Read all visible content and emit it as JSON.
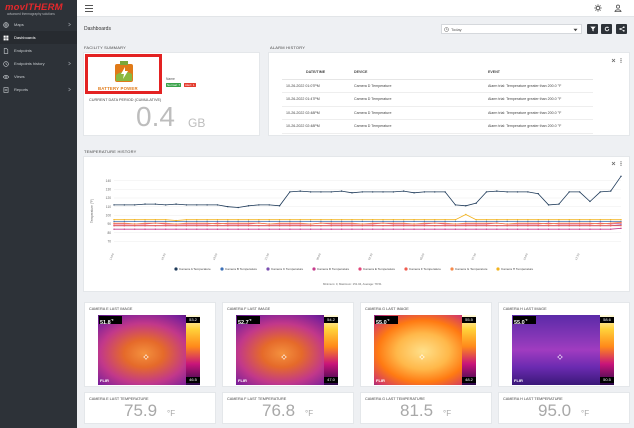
{
  "brand": {
    "logo": "movITHERM",
    "tagline": "advanced thermography solutions"
  },
  "sidebar": {
    "items": [
      {
        "label": "Maps",
        "icon": "globe-icon",
        "has_children": true
      },
      {
        "label": "Dashboards",
        "icon": "dashboard-icon",
        "active": true
      },
      {
        "label": "Endpoints",
        "icon": "file-icon"
      },
      {
        "label": "Endpoints history",
        "icon": "history-icon",
        "has_children": true
      },
      {
        "label": "Views",
        "icon": "eye-icon"
      },
      {
        "label": "Reports",
        "icon": "report-icon",
        "has_children": true
      }
    ]
  },
  "topbar": {
    "icons": [
      "menu-icon",
      "gear-icon",
      "user-icon"
    ]
  },
  "header": {
    "title": "Dashboards",
    "date_range": "Today",
    "buttons": [
      "filter-icon",
      "refresh-icon",
      "share-icon"
    ]
  },
  "facility": {
    "section_title": "FACILITY SUMMARY",
    "logo_text": "BATTERY POWER",
    "name": "Name",
    "badges": [
      {
        "label": "Normal: 7",
        "color": "#3aa34a"
      },
      {
        "label": "Alert: 1",
        "color": "#e33b2e"
      }
    ]
  },
  "data_period": {
    "title": "CURRENT DATA PERIOD (CUMULATIVE)",
    "value": "0.4",
    "unit": "GB"
  },
  "alarm_history": {
    "title": "ALARM HISTORY",
    "columns": [
      "DATE/TIME",
      "DEVICE",
      "EVENT"
    ],
    "rows": [
      [
        "10-26-2022 01:07PM",
        "Camera D Temperature",
        "Alarm trial: Temperature greater than 200.0 °F"
      ],
      [
        "10-26-2022 01:47PM",
        "Camera D Temperature",
        "Alarm trial: Temperature greater than 200.0 °F"
      ],
      [
        "10-26-2022 02:48PM",
        "Camera D Temperature",
        "Alarm trial: Temperature greater than 200.0 °F"
      ],
      [
        "10-26-2022 02:48PM",
        "Camera D Temperature",
        "Alarm trial: Temperature greater than 200.0 °F"
      ]
    ]
  },
  "temp_history": {
    "title": "TEMPERATURE HISTORY",
    "minmax": "Minimum: 0, Maximum: 151.04, Average: 78.51"
  },
  "chart_data": {
    "type": "line",
    "ylabel": "Temperature (°F)",
    "ylim": [
      60,
      150
    ],
    "yticks": [
      140,
      130,
      120,
      110,
      100,
      90,
      80,
      70
    ],
    "grid": true,
    "legend_position": "bottom",
    "x": [
      "14:00",
      "14:30",
      "15:00",
      "15:30",
      "16:00",
      "16:30",
      "17:00",
      "17:30",
      "18:00",
      "18:30",
      "19:00",
      "19:30",
      "20:00",
      "20:30",
      "21:00",
      "21:30",
      "22:00",
      "22:30",
      "23:00",
      "23:30",
      "00:00",
      "00:30",
      "01:00",
      "01:30",
      "02:00",
      "02:30",
      "03:00",
      "03:30",
      "04:00",
      "04:30",
      "05:00",
      "05:30",
      "06:00",
      "06:30",
      "07:00",
      "07:30",
      "08:00",
      "08:30",
      "09:00",
      "09:30",
      "10:00",
      "10:30",
      "11:00",
      "11:30",
      "12:00",
      "12:30",
      "13:00",
      "13:30",
      "14:00",
      "14:30"
    ],
    "series": [
      {
        "name": "Camera A Temperature",
        "color": "#1f3b5a",
        "values": [
          112,
          112,
          112,
          113,
          113,
          112,
          113,
          112,
          112,
          112,
          112,
          110,
          109,
          111,
          112,
          112,
          111,
          127,
          128,
          127,
          127,
          127,
          128,
          126,
          127,
          127,
          127,
          127,
          128,
          126,
          127,
          127,
          127,
          112,
          111,
          114,
          127,
          128,
          127,
          127,
          127,
          125,
          112,
          113,
          127,
          127,
          116,
          127,
          128,
          145
        ]
      },
      {
        "name": "Camera B Temperature",
        "color": "#3b6fb6",
        "values": [
          93,
          93,
          93,
          93,
          93,
          93,
          93,
          93,
          93,
          93,
          93,
          93,
          93,
          93,
          93,
          93,
          93,
          93,
          93,
          93,
          93,
          93,
          93,
          93,
          93,
          93,
          93,
          93,
          93,
          93,
          93,
          93,
          93,
          93,
          93,
          93,
          93,
          93,
          93,
          93,
          93,
          93,
          93,
          93,
          93,
          93,
          93,
          93,
          93,
          93
        ]
      },
      {
        "name": "Camera C Temperature",
        "color": "#7b4fb0",
        "values": [
          88,
          88,
          88,
          88,
          88,
          88,
          88,
          88,
          88,
          88,
          88,
          88,
          88,
          88,
          88,
          88,
          88,
          88,
          88,
          88,
          88,
          88,
          88,
          88,
          88,
          88,
          88,
          88,
          88,
          88,
          88,
          88,
          88,
          88,
          88,
          88,
          88,
          88,
          88,
          88,
          88,
          88,
          88,
          88,
          88,
          88,
          88,
          88,
          88,
          89
        ]
      },
      {
        "name": "Camera D Temperature",
        "color": "#c63c8c",
        "values": [
          84,
          84,
          84,
          84,
          84,
          84,
          84,
          84,
          84,
          84,
          84,
          84,
          84,
          84,
          84,
          84,
          84,
          84,
          84,
          84,
          84,
          84,
          84,
          84,
          84,
          84,
          84,
          84,
          84,
          84,
          84,
          84,
          84,
          84,
          84,
          84,
          84,
          84,
          84,
          84,
          84,
          84,
          84,
          84,
          84,
          84,
          84,
          84,
          84,
          85
        ]
      },
      {
        "name": "Camera E Temperature",
        "color": "#e2467a",
        "values": [
          90,
          90,
          90,
          90,
          91,
          90,
          90,
          90,
          90,
          90,
          91,
          90,
          90,
          90,
          91,
          90,
          90,
          90,
          90,
          90,
          91,
          90,
          90,
          90,
          90,
          90,
          91,
          90,
          90,
          90,
          90,
          91,
          90,
          90,
          90,
          90,
          90,
          91,
          90,
          90,
          90,
          90,
          91,
          90,
          90,
          90,
          90,
          91,
          90,
          91
        ]
      },
      {
        "name": "Camera F Temperature",
        "color": "#f05c4f",
        "values": [
          88,
          88,
          88,
          88,
          88,
          88,
          88,
          88,
          88,
          88,
          88,
          88,
          88,
          88,
          88,
          88,
          88,
          88,
          88,
          88,
          88,
          88,
          88,
          88,
          88,
          88,
          88,
          88,
          88,
          88,
          88,
          88,
          88,
          88,
          88,
          88,
          88,
          88,
          88,
          88,
          88,
          88,
          88,
          88,
          88,
          88,
          88,
          88,
          88,
          88
        ]
      },
      {
        "name": "Camera G Temperature",
        "color": "#f5894a",
        "values": [
          91,
          91,
          90,
          91,
          91,
          91,
          90,
          91,
          91,
          91,
          90,
          91,
          91,
          91,
          91,
          90,
          91,
          91,
          91,
          90,
          91,
          91,
          91,
          91,
          90,
          91,
          91,
          91,
          91,
          90,
          91,
          91,
          91,
          90,
          91,
          91,
          91,
          91,
          90,
          91,
          91,
          91,
          90,
          91,
          91,
          91,
          91,
          90,
          91,
          92
        ]
      },
      {
        "name": "Camera H Temperature",
        "color": "#f2b31f",
        "values": [
          95,
          95,
          95,
          95,
          95,
          95,
          94,
          95,
          95,
          95,
          95,
          95,
          95,
          95,
          95,
          95,
          95,
          95,
          95,
          95,
          95,
          95,
          95,
          95,
          95,
          95,
          95,
          95,
          95,
          95,
          95,
          95,
          95,
          95,
          101,
          95,
          95,
          95,
          95,
          95,
          95,
          95,
          95,
          95,
          95,
          95,
          95,
          95,
          95,
          95
        ]
      }
    ]
  },
  "cameras": [
    {
      "last_image_title": "CAMERA E LAST IMAGE",
      "top_temp": "51.8",
      "scale_hi": "53.2",
      "scale_lo": "46.5",
      "unit": "°F",
      "last_temp_title": "CAMERA E LAST TEMPERATURE",
      "last_temp": "75.9",
      "last_unit": "°F",
      "palette": "iron"
    },
    {
      "last_image_title": "CAMERA F LAST IMAGE",
      "top_temp": "52.7",
      "scale_hi": "54.2",
      "scale_lo": "47.0",
      "unit": "°F",
      "last_temp_title": "CAMERA F LAST TEMPERATURE",
      "last_temp": "76.8",
      "last_unit": "°F",
      "palette": "iron"
    },
    {
      "last_image_title": "CAMERA G LAST IMAGE",
      "top_temp": "55.0",
      "scale_hi": "55.5",
      "scale_lo": "48.2",
      "unit": "°F",
      "last_temp_title": "CAMERA G LAST TEMPERATURE",
      "last_temp": "81.5",
      "last_unit": "°F",
      "palette": "hot"
    },
    {
      "last_image_title": "CAMERA H LAST IMAGE",
      "top_temp": "55.0",
      "scale_hi": "58.6",
      "scale_lo": "50.5",
      "unit": "°F",
      "last_temp_title": "CAMERA H LAST TEMPERATURE",
      "last_temp": "95.0",
      "last_unit": "°F",
      "palette": "purple"
    }
  ],
  "flir_label": "FLIR"
}
